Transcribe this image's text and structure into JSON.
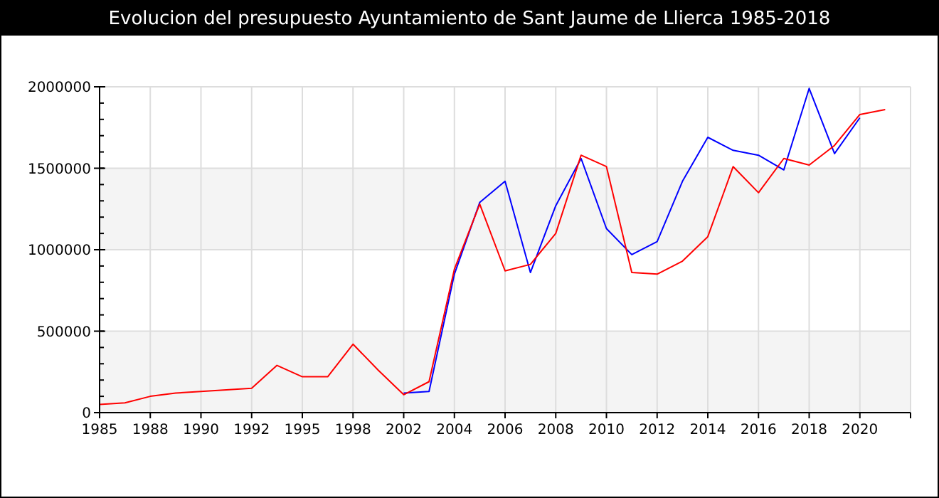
{
  "chart_data": {
    "type": "line",
    "title": "Evolucion del presupuesto Ayuntamiento de Sant Jaume de Llierca 1985-2018",
    "categories": [
      "1985",
      null,
      "1988",
      null,
      "1990",
      null,
      "1992",
      null,
      "1995",
      null,
      "1998",
      null,
      "2002",
      null,
      "2004",
      null,
      "2006",
      null,
      "2008",
      null,
      "2010",
      null,
      "2012",
      null,
      "2014",
      null,
      "2016",
      null,
      "2018",
      null,
      "2020",
      null,
      null
    ],
    "series": [
      {
        "color": "#0000ff",
        "values": [
          null,
          null,
          null,
          null,
          null,
          null,
          null,
          null,
          null,
          null,
          null,
          null,
          120000,
          130000,
          850000,
          1290000,
          1420000,
          860000,
          1270000,
          1560000,
          1130000,
          970000,
          1050000,
          1420000,
          1690000,
          1610000,
          1580000,
          1490000,
          1990000,
          1590000,
          1810000,
          null,
          null
        ]
      },
      {
        "color": "#ff0000",
        "values": [
          50000,
          60000,
          100000,
          120000,
          130000,
          140000,
          150000,
          290000,
          220000,
          220000,
          420000,
          260000,
          110000,
          190000,
          880000,
          1280000,
          870000,
          910000,
          1100000,
          1580000,
          1510000,
          860000,
          850000,
          930000,
          1080000,
          1510000,
          1350000,
          1560000,
          1520000,
          1640000,
          1830000,
          1860000,
          null
        ]
      }
    ],
    "ylim": [
      0,
      2000000
    ],
    "yticks": [
      0,
      500000,
      1000000,
      1500000,
      2000000
    ],
    "grid": true
  }
}
